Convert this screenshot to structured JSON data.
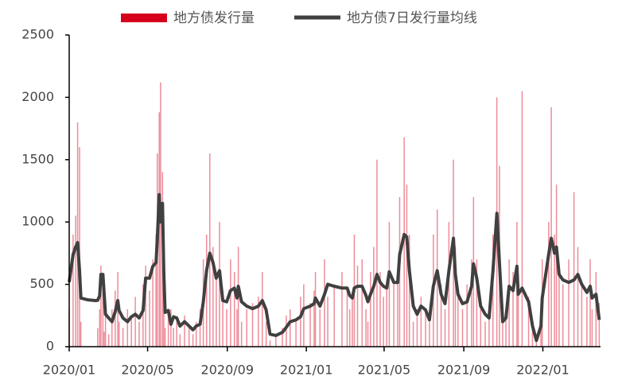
{
  "chart_data": {
    "type": "combo",
    "x": [
      0,
      6,
      10,
      13,
      16,
      18,
      28,
      40,
      44,
      47,
      49,
      52,
      54,
      56,
      61,
      66,
      71,
      75,
      77,
      83,
      90,
      96,
      102,
      108,
      114,
      118,
      124,
      129,
      134,
      136,
      139,
      141,
      144,
      146,
      148,
      153,
      157,
      161,
      166,
      171,
      178,
      185,
      191,
      196,
      202,
      207,
      212,
      217,
      222,
      227,
      232,
      237,
      243,
      249,
      255,
      259,
      261,
      266,
      274,
      283,
      292,
      298,
      304,
      310,
      319,
      329,
      335,
      341,
      350,
      357,
      362,
      372,
      378,
      380,
      387,
      394,
      399,
      409,
      421,
      429,
      433,
      437,
      440,
      445,
      452,
      458,
      461,
      465,
      470,
      475,
      480,
      485,
      490,
      494,
      501,
      507,
      510,
      517,
      521,
      525,
      531,
      537,
      543,
      550,
      556,
      562,
      568,
      574,
      580,
      586,
      593,
      596,
      600,
      607,
      614,
      621,
      624,
      629,
      635,
      642,
      648,
      654,
      660,
      664,
      669,
      674,
      679,
      685,
      691,
      693,
      699,
      709,
      715,
      721,
      728,
      730,
      740,
      744,
      749,
      752,
      756,
      762,
      771,
      779,
      785,
      791,
      799,
      804,
      807,
      813,
      818
    ],
    "xlim": [
      0,
      820
    ],
    "xticks": [
      {
        "value": 0,
        "label": "2020/01"
      },
      {
        "value": 121,
        "label": "2020/05"
      },
      {
        "value": 244,
        "label": "2020/09"
      },
      {
        "value": 366,
        "label": "2021/01"
      },
      {
        "value": 486,
        "label": "2021/05"
      },
      {
        "value": 609,
        "label": "2021/09"
      },
      {
        "value": 731,
        "label": "2022/01"
      }
    ],
    "ylim": [
      0,
      2500
    ],
    "yticks": [
      0,
      500,
      1000,
      1500,
      2000,
      2500
    ],
    "series": [
      {
        "name": "地方债发行量",
        "type": "bar",
        "color": "#d6001c",
        "values": [
          300,
          900,
          1050,
          1800,
          1600,
          200,
          0,
          0,
          150,
          300,
          650,
          500,
          120,
          250,
          100,
          300,
          450,
          600,
          200,
          150,
          300,
          250,
          400,
          200,
          500,
          650,
          450,
          700,
          900,
          1550,
          1880,
          2120,
          1400,
          600,
          150,
          250,
          300,
          150,
          200,
          100,
          250,
          150,
          100,
          200,
          300,
          700,
          900,
          1550,
          800,
          600,
          1000,
          400,
          300,
          700,
          600,
          300,
          800,
          200,
          300,
          350,
          400,
          600,
          200,
          50,
          100,
          150,
          250,
          300,
          200,
          400,
          500,
          350,
          450,
          600,
          300,
          700,
          400,
          500,
          600,
          450,
          300,
          400,
          900,
          650,
          700,
          300,
          200,
          600,
          800,
          1500,
          600,
          400,
          500,
          1000,
          500,
          600,
          1200,
          1680,
          1300,
          900,
          200,
          300,
          400,
          300,
          200,
          900,
          1100,
          500,
          300,
          1000,
          1500,
          800,
          400,
          300,
          500,
          700,
          1200,
          700,
          300,
          200,
          300,
          900,
          2000,
          1450,
          200,
          300,
          700,
          600,
          1000,
          500,
          2050,
          400,
          200,
          50,
          300,
          700,
          1000,
          1920,
          900,
          1300,
          600,
          500,
          700,
          1240,
          800,
          500,
          400,
          700,
          300,
          600,
          350
        ]
      },
      {
        "name": "地方债7日发行量均线",
        "type": "line",
        "color": "#404040",
        "values": [
          517,
          740,
          800,
          835,
          610,
          390,
          376,
          370,
          372,
          408,
          580,
          580,
          420,
          260,
          230,
          200,
          280,
          370,
          290,
          230,
          200,
          240,
          260,
          230,
          290,
          550,
          550,
          645,
          675,
          870,
          1220,
          1000,
          1150,
          610,
          275,
          290,
          180,
          240,
          230,
          165,
          200,
          165,
          135,
          165,
          180,
          360,
          610,
          750,
          675,
          550,
          610,
          370,
          360,
          450,
          470,
          390,
          485,
          360,
          325,
          305,
          325,
          370,
          295,
          100,
          90,
          115,
          155,
          200,
          215,
          240,
          305,
          325,
          345,
          390,
          325,
          420,
          500,
          485,
          470,
          470,
          410,
          390,
          470,
          485,
          485,
          410,
          360,
          420,
          485,
          580,
          515,
          485,
          470,
          600,
          515,
          515,
          740,
          900,
          880,
          610,
          325,
          260,
          325,
          295,
          215,
          485,
          610,
          420,
          345,
          610,
          870,
          580,
          420,
          345,
          360,
          485,
          665,
          550,
          325,
          260,
          230,
          610,
          1070,
          675,
          200,
          230,
          485,
          450,
          645,
          420,
          470,
          360,
          165,
          50,
          165,
          390,
          740,
          870,
          750,
          800,
          580,
          535,
          515,
          535,
          580,
          500,
          435,
          485,
          390,
          420,
          215
        ]
      }
    ]
  }
}
